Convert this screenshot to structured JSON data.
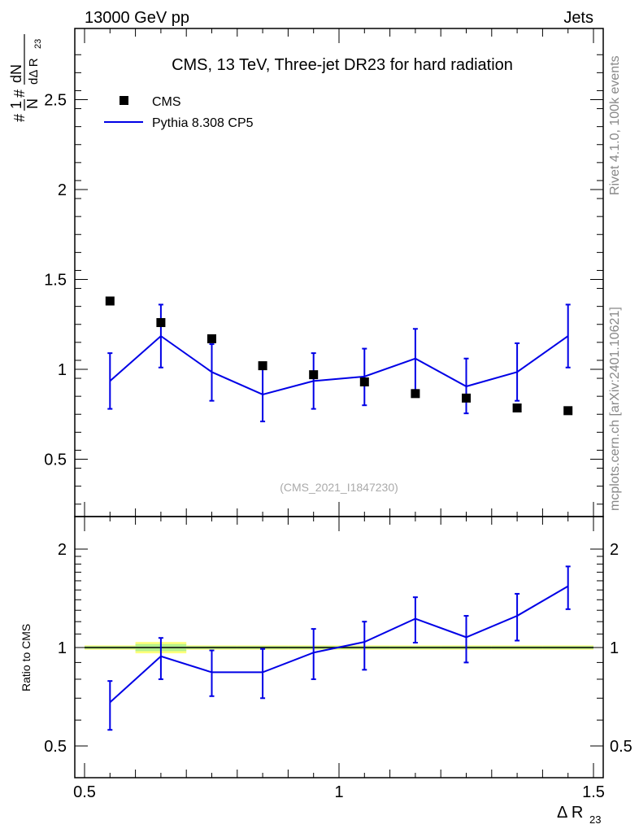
{
  "header": {
    "left": "13000 GeV pp",
    "right": "Jets"
  },
  "side": {
    "rivet": "Rivet 4.1.0,  100k events",
    "mcplots": "mcplots.cern.ch [arXiv:2401.10621]"
  },
  "colors": {
    "mc": "#0000e6",
    "data": "#000000",
    "band_outer": "#ffff7a",
    "band_inner": "#b4f08c"
  },
  "chart_data": [
    {
      "type": "scatter",
      "panel": "main",
      "title": "CMS, 13 TeV, Three-jet DR23 for hard radiation",
      "xlabel": "Δ R23",
      "ylabel": "1/N dN/dΔ R23",
      "watermark": "(CMS_2021_I1847230)",
      "xlim": [
        0.5,
        1.5
      ],
      "ylim": [
        0.2,
        2.9
      ],
      "yticks": [
        0.5,
        1,
        1.5,
        2,
        2.5
      ],
      "ytick_labels": [
        "0.5",
        "1",
        "1.5",
        "2",
        "2.5"
      ],
      "legend": [
        "CMS",
        "Pythia 8.308 CP5"
      ],
      "legend_position": "top-left",
      "x": [
        0.55,
        0.65,
        0.75,
        0.85,
        0.95,
        1.05,
        1.15,
        1.25,
        1.35,
        1.45
      ],
      "series": [
        {
          "name": "CMS",
          "style": "markers",
          "values": [
            1.38,
            1.26,
            1.17,
            1.02,
            0.97,
            0.93,
            0.865,
            0.84,
            0.785,
            0.77
          ]
        },
        {
          "name": "Pythia 8.308 CP5",
          "style": "line",
          "values": [
            0.935,
            1.185,
            0.985,
            0.86,
            0.935,
            0.96,
            1.06,
            0.905,
            0.985,
            1.185
          ],
          "err_low": [
            0.78,
            1.01,
            0.825,
            0.71,
            0.78,
            0.8,
            0.885,
            0.755,
            0.825,
            1.01
          ],
          "err_high": [
            1.09,
            1.36,
            1.14,
            1.01,
            1.09,
            1.115,
            1.225,
            1.06,
            1.145,
            1.36
          ]
        }
      ]
    },
    {
      "type": "line",
      "panel": "ratio",
      "ylabel": "Ratio to CMS",
      "xlabel": "Δ R23",
      "xlim": [
        0.5,
        1.5
      ],
      "ylim": [
        0.42,
        2.2
      ],
      "yticks": [
        0.5,
        1,
        2
      ],
      "ytick_labels": [
        "0.5",
        "1",
        "2"
      ],
      "xticks": [
        0.5,
        1,
        1.5
      ],
      "xtick_labels": [
        "0.5",
        "1",
        "1.5"
      ],
      "x": [
        0.55,
        0.65,
        0.75,
        0.85,
        0.95,
        1.05,
        1.15,
        1.25,
        1.35,
        1.45
      ],
      "series": [
        {
          "name": "Pythia 8.308 CP5 / CMS",
          "values": [
            0.68,
            0.94,
            0.84,
            0.84,
            0.965,
            1.04,
            1.225,
            1.075,
            1.25,
            1.54
          ],
          "err_low": [
            0.56,
            0.8,
            0.71,
            0.7,
            0.8,
            0.855,
            1.035,
            0.9,
            1.05,
            1.31
          ],
          "err_high": [
            0.79,
            1.07,
            0.98,
            0.99,
            1.14,
            1.2,
            1.425,
            1.25,
            1.46,
            1.77
          ]
        }
      ],
      "data_band": {
        "outer_low": [
          0.985,
          0.96,
          0.985,
          0.985,
          0.985,
          0.985,
          0.985,
          0.985,
          0.985,
          0.985
        ],
        "outer_high": [
          1.015,
          1.04,
          1.015,
          1.015,
          1.015,
          1.015,
          1.015,
          1.015,
          1.015,
          1.015
        ],
        "inner_low": [
          0.99,
          0.975,
          0.99,
          0.99,
          0.99,
          0.99,
          0.99,
          0.99,
          0.99,
          0.99
        ],
        "inner_high": [
          1.01,
          1.025,
          1.01,
          1.01,
          1.01,
          1.01,
          1.01,
          1.01,
          1.01,
          1.01
        ]
      }
    }
  ]
}
